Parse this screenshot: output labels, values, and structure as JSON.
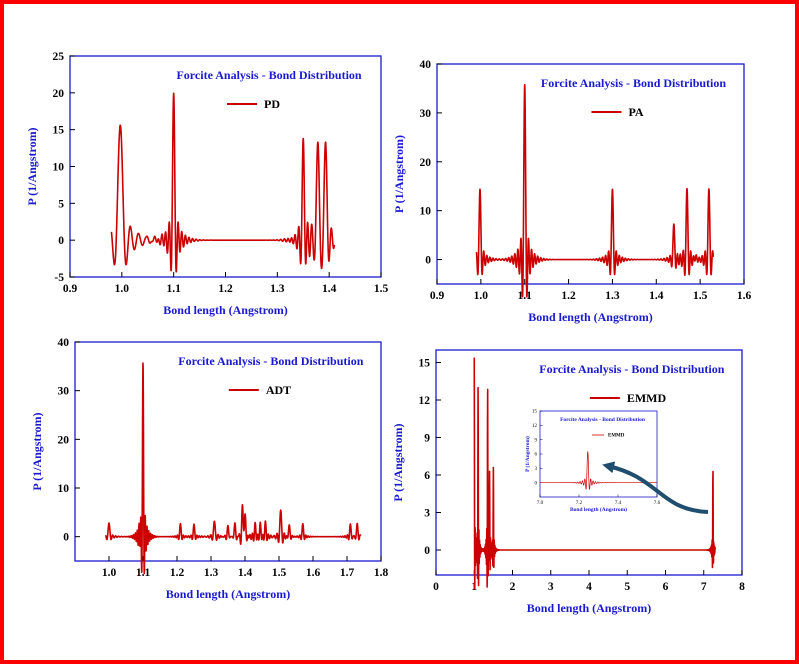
{
  "page": {
    "border_color": "#ff0000",
    "frame_color": "#1a1ad0",
    "series_color": "#cc0000",
    "arrow_color": "#1f4e6e"
  },
  "chart_data": [
    {
      "id": "pd",
      "type": "line",
      "title": "Forcite Analysis - Bond Distribution",
      "xlabel": "Bond length (Angstrom)",
      "ylabel": "P (1/Angstrom)",
      "xlim": [
        0.9,
        1.5
      ],
      "ylim": [
        -5,
        25
      ],
      "xticks": [
        "0.9",
        "1.0",
        "1.1",
        "1.2",
        "1.3",
        "1.4",
        "1.5"
      ],
      "xtick_values": [
        0.9,
        1.0,
        1.1,
        1.2,
        1.3,
        1.4,
        1.5
      ],
      "yticks": [
        "-5",
        "0",
        "5",
        "10",
        "15",
        "20",
        "25"
      ],
      "ytick_values": [
        -5,
        0,
        5,
        10,
        15,
        20,
        25
      ],
      "series": [
        {
          "name": "PD",
          "xrange": [
            0.98,
            1.41
          ],
          "peaks": [
            [
              0.997,
              15.6,
              0.009
            ],
            [
              1.1,
              20.0,
              0.004
            ],
            [
              1.35,
              13.4,
              0.004
            ],
            [
              1.378,
              14.4,
              0.005
            ],
            [
              1.393,
              14.4,
              0.005
            ]
          ]
        }
      ]
    },
    {
      "id": "pa",
      "type": "line",
      "title": "Forcite Analysis - Bond Distribution",
      "xlabel": "Bond length (Angstrom)",
      "ylabel": "P (1/Angstrom)",
      "xlim": [
        0.9,
        1.6
      ],
      "ylim": [
        -5,
        40
      ],
      "xticks": [
        "0.9",
        "1.0",
        "1.1",
        "1.2",
        "1.3",
        "1.4",
        "1.5",
        "1.6"
      ],
      "xtick_values": [
        0.9,
        1.0,
        1.1,
        1.2,
        1.3,
        1.4,
        1.5,
        1.6
      ],
      "yticks": [
        "0",
        "10",
        "20",
        "30",
        "40"
      ],
      "ytick_values": [
        0,
        10,
        20,
        30,
        40
      ],
      "series": [
        {
          "name": "PA",
          "xrange": [
            0.99,
            1.53
          ],
          "peaks": [
            [
              0.998,
              14.4,
              0.004
            ],
            [
              1.1,
              35.8,
              0.004
            ],
            [
              1.3,
              14.4,
              0.004
            ],
            [
              1.44,
              7.0,
              0.004
            ],
            [
              1.47,
              14.4,
              0.004
            ],
            [
              1.49,
              0.8,
              0.003
            ],
            [
              1.52,
              14.4,
              0.004
            ]
          ]
        }
      ]
    },
    {
      "id": "adt",
      "type": "line",
      "title": "Forcite Analysis - Bond Distribution",
      "xlabel": "Bond length (Angstrom)",
      "ylabel": "P (1/Angstrom)",
      "xlim": [
        0.9,
        1.8
      ],
      "ylim": [
        -5,
        40
      ],
      "xticks": [
        "1.0",
        "1.1",
        "1.2",
        "1.3",
        "1.4",
        "1.5",
        "1.6",
        "1.7",
        "1.8"
      ],
      "xtick_values": [
        1.0,
        1.1,
        1.2,
        1.3,
        1.4,
        1.5,
        1.6,
        1.7,
        1.8
      ],
      "yticks": [
        "0",
        "10",
        "20",
        "30",
        "40"
      ],
      "ytick_values": [
        0,
        10,
        20,
        30,
        40
      ],
      "series": [
        {
          "name": "ADT",
          "xrange": [
            0.99,
            1.74
          ],
          "peaks": [
            [
              1.0,
              2.8,
              0.005
            ],
            [
              1.09,
              1.2,
              0.003
            ],
            [
              1.1,
              36.0,
              0.003
            ],
            [
              1.21,
              2.7,
              0.004
            ],
            [
              1.25,
              2.6,
              0.004
            ],
            [
              1.31,
              3.2,
              0.005
            ],
            [
              1.35,
              2.4,
              0.004
            ],
            [
              1.37,
              3.0,
              0.004
            ],
            [
              1.393,
              6.2,
              0.005
            ],
            [
              1.4,
              5.6,
              0.004
            ],
            [
              1.43,
              2.5,
              0.004
            ],
            [
              1.445,
              2.7,
              0.004
            ],
            [
              1.46,
              3.0,
              0.004
            ],
            [
              1.505,
              5.5,
              0.005
            ],
            [
              1.53,
              2.6,
              0.004
            ],
            [
              1.57,
              2.7,
              0.004
            ],
            [
              1.71,
              2.7,
              0.004
            ],
            [
              1.73,
              2.8,
              0.004
            ]
          ]
        }
      ]
    },
    {
      "id": "emmd",
      "type": "line",
      "title": "Forcite Analysis - Bond Distribution",
      "xlabel": "Bond length (Angstrom)",
      "ylabel": "P (1/Angstrom)",
      "xlim": [
        0,
        8
      ],
      "ylim": [
        -2,
        16
      ],
      "xticks": [
        "0",
        "1",
        "2",
        "3",
        "4",
        "5",
        "6",
        "7",
        "8"
      ],
      "xtick_values": [
        0,
        1,
        2,
        3,
        4,
        5,
        6,
        7,
        8
      ],
      "yticks": [
        "0",
        "3",
        "6",
        "9",
        "12",
        "15"
      ],
      "ytick_values": [
        0,
        3,
        6,
        9,
        12,
        15
      ],
      "series": [
        {
          "name": "EMMD",
          "xrange": [
            1.0,
            7.3
          ],
          "peaks": [
            [
              1.0,
              15.5,
              0.01
            ],
            [
              1.1,
              13.4,
              0.01
            ],
            [
              1.35,
              13.4,
              0.01
            ],
            [
              1.4,
              6.7,
              0.01
            ],
            [
              1.5,
              6.7,
              0.01
            ],
            [
              7.24,
              6.6,
              0.01
            ]
          ]
        }
      ],
      "inset": {
        "title": "Forcite Analysis - Bond Distribution",
        "xlabel": "Bond length (Angstrom)",
        "ylabel": "P (1/Angstrom)",
        "xlim": [
          7.0,
          7.6
        ],
        "ylim": [
          -3,
          15
        ],
        "xticks": [
          "7.0",
          "7.2",
          "7.4",
          "7.6"
        ],
        "xtick_values": [
          7.0,
          7.2,
          7.4,
          7.6
        ],
        "yticks": [
          "0",
          "3",
          "6",
          "9",
          "12",
          "15"
        ],
        "ytick_values": [
          0,
          3,
          6,
          9,
          12,
          15
        ],
        "series": [
          {
            "name": "EMMD",
            "xrange": [
              7.0,
              7.6
            ],
            "peaks": [
              [
                7.245,
                6.5,
                0.007
              ]
            ]
          }
        ]
      }
    }
  ]
}
